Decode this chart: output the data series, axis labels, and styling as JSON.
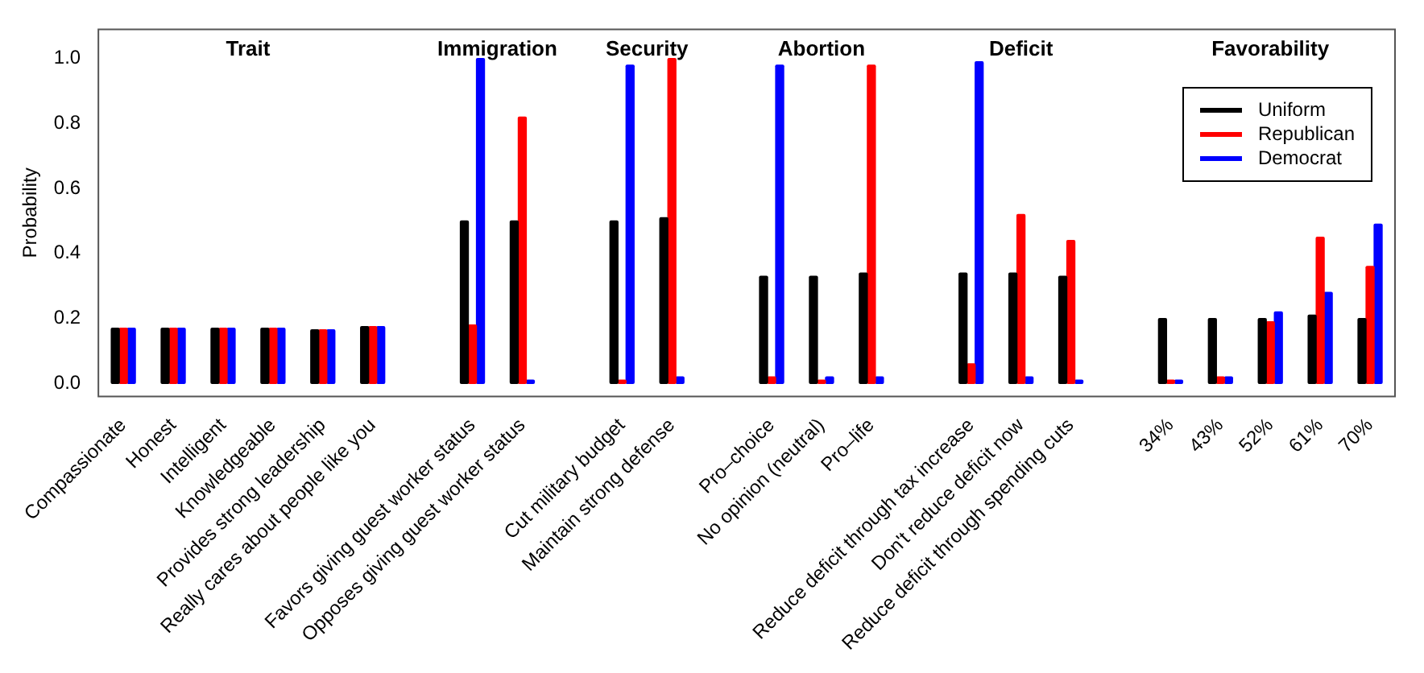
{
  "chart_data": {
    "type": "bar",
    "ylabel": "Probability",
    "categories": [
      "Compassionate",
      "Honest",
      "Intelligent",
      "Knowledgeable",
      "Provides strong leadership",
      "Really cares about people like you",
      null,
      "Favors giving guest worker status",
      "Opposes giving guest worker status",
      null,
      "Cut military budget",
      "Maintain strong defense",
      null,
      "Pro–choice",
      "No opinion (neutral)",
      "Pro–life",
      null,
      "Reduce deficit through tax increase",
      "Don't reduce deficit now",
      "Reduce deficit through spending cuts",
      null,
      "34%",
      "43%",
      "52%",
      "61%",
      "70%"
    ],
    "series": [
      {
        "name": "Uniform",
        "color": "#000000",
        "values": [
          0.17,
          0.17,
          0.17,
          0.17,
          0.165,
          0.175,
          null,
          0.5,
          0.5,
          null,
          0.5,
          0.51,
          null,
          0.33,
          0.33,
          0.34,
          null,
          0.34,
          0.34,
          0.33,
          null,
          0.2,
          0.2,
          0.2,
          0.21,
          0.2
        ]
      },
      {
        "name": "Republican",
        "color": "#ff0000",
        "values": [
          0.17,
          0.17,
          0.17,
          0.17,
          0.165,
          0.175,
          null,
          0.18,
          0.82,
          null,
          0.01,
          1.0,
          null,
          0.02,
          0.01,
          0.98,
          null,
          0.06,
          0.52,
          0.44,
          null,
          0.01,
          0.02,
          0.19,
          0.45,
          0.36
        ]
      },
      {
        "name": "Democrat",
        "color": "#0000ff",
        "values": [
          0.17,
          0.17,
          0.17,
          0.17,
          0.165,
          0.175,
          null,
          1.0,
          0.01,
          null,
          0.98,
          0.02,
          null,
          0.98,
          0.02,
          0.02,
          null,
          0.99,
          0.02,
          0.01,
          null,
          0.01,
          0.02,
          0.22,
          0.28,
          0.49
        ]
      }
    ],
    "ylim": [
      -0.04,
      1.09
    ],
    "yticks": [
      {
        "value": 0,
        "label": "0.0"
      },
      0.2,
      0.4,
      0.6,
      0.8,
      {
        "value": 1,
        "label": "1.0"
      }
    ],
    "annotations": [
      "Trait",
      "Immigration",
      "Security",
      "Abortion",
      "Deficit",
      "Favorability"
    ],
    "legend": "top right",
    "grid": false
  }
}
